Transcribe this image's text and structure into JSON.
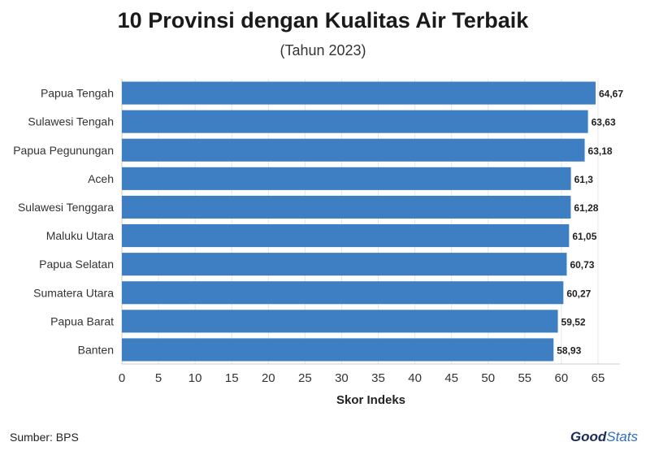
{
  "header": {
    "title": "10 Provinsi dengan Kualitas Air Terbaik",
    "subtitle": "(Tahun 2023)"
  },
  "footer": {
    "source": "Sumber: BPS",
    "brand_good": "Good",
    "brand_stats": "Stats"
  },
  "colors": {
    "bar": "#3e7fc4",
    "grid": "#e6e6e6",
    "axis_text": "#333333"
  },
  "chart_data": {
    "type": "bar",
    "orientation": "horizontal",
    "title": "10 Provinsi dengan Kualitas Air Terbaik",
    "subtitle": "(Tahun 2023)",
    "xlabel": "Skor Indeks",
    "ylabel": "",
    "xlim": [
      0,
      68
    ],
    "xticks": [
      0,
      5,
      10,
      15,
      20,
      25,
      30,
      35,
      40,
      45,
      50,
      55,
      60,
      65
    ],
    "grid": true,
    "categories": [
      "Papua Tengah",
      "Sulawesi Tengah",
      "Papua Pegunungan",
      "Aceh",
      "Sulawesi Tenggara",
      "Maluku Utara",
      "Papua Selatan",
      "Sumatera Utara",
      "Papua Barat",
      "Banten"
    ],
    "values": [
      64.67,
      63.63,
      63.18,
      61.3,
      61.28,
      61.05,
      60.73,
      60.27,
      59.52,
      58.93
    ],
    "value_labels": [
      "64,67",
      "63,63",
      "63,18",
      "61,3",
      "61,28",
      "61,05",
      "60,73",
      "60,27",
      "59,52",
      "58,93"
    ]
  }
}
